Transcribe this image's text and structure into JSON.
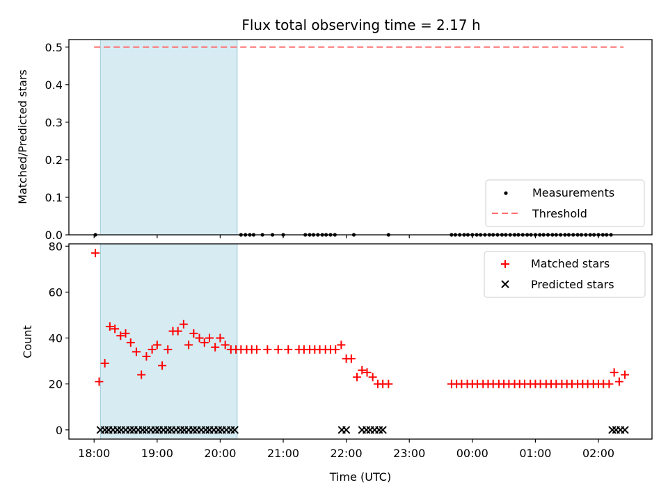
{
  "chart_data": [
    {
      "type": "scatter",
      "title": "Flux total observing time = 2.17 h",
      "xlabel": "",
      "ylabel": "Matched/Predicted stars",
      "xlim": [
        17.6,
        26.85
      ],
      "ylim": [
        0.0,
        0.52
      ],
      "yticks": [
        0.0,
        0.1,
        0.2,
        0.3,
        0.4,
        0.5
      ],
      "ytick_labels": [
        "0.0",
        "0.1",
        "0.2",
        "0.3",
        "0.4",
        "0.5"
      ],
      "shaded_span": [
        18.1,
        20.27
      ],
      "shade_color": "#add8e6",
      "threshold": {
        "name": "Threshold",
        "value": 0.5,
        "x_range": [
          18.0,
          26.4
        ],
        "color": "#ff7070"
      },
      "series": [
        {
          "name": "Measurements",
          "marker": "dot",
          "color": "#000000",
          "x": [
            18.02,
            20.33,
            20.4,
            20.47,
            20.53,
            20.67,
            20.83,
            21.0,
            21.35,
            21.42,
            21.48,
            21.55,
            21.62,
            21.68,
            21.75,
            21.82,
            22.12,
            22.67,
            23.67,
            23.73,
            23.8,
            23.87,
            23.93,
            24.0,
            24.07,
            24.13,
            24.2,
            24.27,
            24.33,
            24.4,
            24.47,
            24.53,
            24.6,
            24.67,
            24.73,
            24.8,
            24.87,
            24.93,
            25.0,
            25.07,
            25.13,
            25.2,
            25.27,
            25.33,
            25.4,
            25.47,
            25.53,
            25.6,
            25.67,
            25.73,
            25.8,
            25.87,
            25.93,
            26.0,
            26.07,
            26.13,
            26.2
          ],
          "y": [
            0,
            0,
            0,
            0,
            0,
            0,
            0,
            0,
            0,
            0,
            0,
            0,
            0,
            0,
            0,
            0,
            0,
            0,
            0,
            0,
            0,
            0,
            0,
            0,
            0,
            0,
            0,
            0,
            0,
            0,
            0,
            0,
            0,
            0,
            0,
            0,
            0,
            0,
            0,
            0,
            0,
            0,
            0,
            0,
            0,
            0,
            0,
            0,
            0,
            0,
            0,
            0,
            0,
            0,
            0,
            0,
            0
          ]
        }
      ],
      "legend": {
        "position": "lower-right",
        "entries": [
          "Measurements",
          "Threshold"
        ]
      }
    },
    {
      "type": "scatter",
      "title": "",
      "xlabel": "Time (UTC)",
      "ylabel": "Count",
      "xlim": [
        17.6,
        26.85
      ],
      "ylim": [
        -4,
        81
      ],
      "xticks": [
        18,
        19,
        20,
        21,
        22,
        23,
        24,
        25,
        26
      ],
      "xtick_labels": [
        "18:00",
        "19:00",
        "20:00",
        "21:00",
        "22:00",
        "23:00",
        "00:00",
        "01:00",
        "02:00"
      ],
      "yticks": [
        0,
        20,
        40,
        60,
        80
      ],
      "ytick_labels": [
        "0",
        "20",
        "40",
        "60",
        "80"
      ],
      "shaded_span": [
        18.1,
        20.27
      ],
      "shade_color": "#add8e6",
      "series": [
        {
          "name": "Matched stars",
          "marker": "plus",
          "color": "#ff0000",
          "x": [
            18.02,
            18.08,
            18.17,
            18.25,
            18.33,
            18.42,
            18.5,
            18.58,
            18.67,
            18.75,
            18.83,
            18.92,
            19.0,
            19.08,
            19.17,
            19.25,
            19.33,
            19.42,
            19.5,
            19.58,
            19.67,
            19.75,
            19.83,
            19.92,
            20.0,
            20.08,
            20.17,
            20.25,
            20.33,
            20.42,
            20.5,
            20.58,
            20.75,
            20.92,
            21.08,
            21.25,
            21.33,
            21.42,
            21.5,
            21.58,
            21.67,
            21.75,
            21.83,
            21.92,
            22.0,
            22.08,
            22.17,
            22.25,
            22.33,
            22.42,
            22.5,
            22.58,
            22.67,
            23.67,
            23.75,
            23.83,
            23.92,
            24.0,
            24.08,
            24.17,
            24.25,
            24.33,
            24.42,
            24.5,
            24.58,
            24.67,
            24.75,
            24.83,
            24.92,
            25.0,
            25.08,
            25.17,
            25.25,
            25.33,
            25.42,
            25.5,
            25.58,
            25.67,
            25.75,
            25.83,
            25.92,
            26.0,
            26.08,
            26.17,
            26.25,
            26.33,
            26.42
          ],
          "y": [
            77,
            21,
            29,
            45,
            44,
            41,
            42,
            38,
            34,
            24,
            32,
            35,
            37,
            28,
            35,
            43,
            43,
            46,
            37,
            42,
            40,
            38,
            40,
            36,
            40,
            37,
            35,
            35,
            35,
            35,
            35,
            35,
            35,
            35,
            35,
            35,
            35,
            35,
            35,
            35,
            35,
            35,
            35,
            37,
            31,
            31,
            23,
            26,
            25,
            23,
            20,
            20,
            20,
            20,
            20,
            20,
            20,
            20,
            20,
            20,
            20,
            20,
            20,
            20,
            20,
            20,
            20,
            20,
            20,
            20,
            20,
            20,
            20,
            20,
            20,
            20,
            20,
            20,
            20,
            20,
            20,
            20,
            20,
            20,
            25,
            21,
            24
          ]
        },
        {
          "name": "Predicted stars",
          "marker": "x",
          "color": "#000000",
          "x": [
            18.1,
            18.17,
            18.23,
            18.3,
            18.37,
            18.43,
            18.5,
            18.57,
            18.63,
            18.7,
            18.77,
            18.83,
            18.9,
            18.97,
            19.03,
            19.1,
            19.17,
            19.23,
            19.3,
            19.37,
            19.43,
            19.5,
            19.57,
            19.63,
            19.7,
            19.77,
            19.83,
            19.9,
            19.97,
            20.03,
            20.1,
            20.17,
            20.23,
            21.93,
            22.0,
            22.25,
            22.32,
            22.38,
            22.45,
            22.52,
            22.58,
            26.22,
            26.28,
            26.35,
            26.42
          ],
          "y": [
            0,
            0,
            0,
            0,
            0,
            0,
            0,
            0,
            0,
            0,
            0,
            0,
            0,
            0,
            0,
            0,
            0,
            0,
            0,
            0,
            0,
            0,
            0,
            0,
            0,
            0,
            0,
            0,
            0,
            0,
            0,
            0,
            0,
            0,
            0,
            0,
            0,
            0,
            0,
            0,
            0,
            0,
            0,
            0,
            0
          ]
        }
      ],
      "legend": {
        "position": "upper-right",
        "entries": [
          "Matched stars",
          "Predicted stars"
        ]
      }
    }
  ]
}
